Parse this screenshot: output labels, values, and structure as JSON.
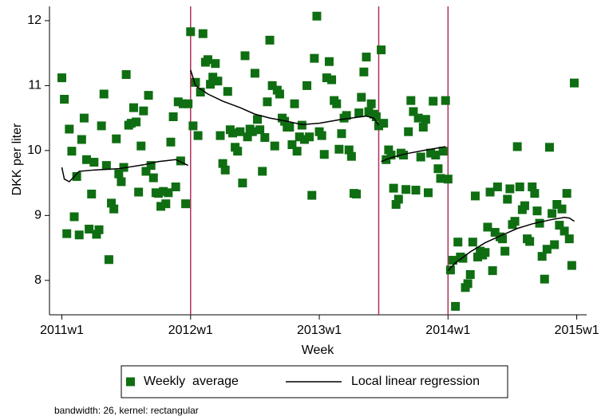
{
  "chart_data": {
    "type": "scatter",
    "y_label": "DKK per liter",
    "x_label": "Week",
    "footnote": "bandwidth: 26, kernel: rectangular",
    "xlim": [
      2647,
      2864
    ],
    "ylim": [
      7.47,
      12.22
    ],
    "xticks": [
      {
        "value": 2652,
        "label": "2011w1"
      },
      {
        "value": 2704,
        "label": "2012w1"
      },
      {
        "value": 2756,
        "label": "2013w1"
      },
      {
        "value": 2808,
        "label": "2014w1"
      },
      {
        "value": 2860,
        "label": "2015w1"
      }
    ],
    "yticks": [
      8,
      9,
      10,
      11,
      12
    ],
    "vlines": [
      2704,
      2780,
      2808
    ],
    "vline_color": "#b0305c",
    "legend": "bottom",
    "series": [
      {
        "name": "Weekly  average",
        "kind": "scatter",
        "color": "#0f6e12",
        "x": [
          2652,
          2653,
          2654,
          2655,
          2656,
          2657,
          2658,
          2659,
          2660,
          2661,
          2662,
          2663,
          2664,
          2665,
          2666,
          2667,
          2668,
          2669,
          2670,
          2671,
          2672,
          2673,
          2674,
          2675,
          2676,
          2677,
          2678,
          2679,
          2680,
          2681,
          2682,
          2683,
          2684,
          2685,
          2686,
          2687,
          2688,
          2689,
          2690,
          2691,
          2692,
          2693,
          2694,
          2695,
          2696,
          2697,
          2698,
          2699,
          2700,
          2701,
          2702,
          2703,
          2704,
          2705,
          2706,
          2707,
          2708,
          2709,
          2710,
          2711,
          2712,
          2713,
          2714,
          2715,
          2716,
          2717,
          2718,
          2719,
          2720,
          2721,
          2722,
          2723,
          2724,
          2725,
          2726,
          2727,
          2728,
          2729,
          2730,
          2731,
          2732,
          2733,
          2734,
          2735,
          2736,
          2737,
          2738,
          2739,
          2740,
          2741,
          2742,
          2743,
          2744,
          2745,
          2746,
          2747,
          2748,
          2749,
          2750,
          2751,
          2752,
          2753,
          2754,
          2755,
          2756,
          2757,
          2758,
          2759,
          2760,
          2761,
          2762,
          2763,
          2764,
          2765,
          2766,
          2767,
          2768,
          2769,
          2770,
          2771,
          2772,
          2773,
          2774,
          2775,
          2776,
          2777,
          2778,
          2779,
          2780,
          2781,
          2782,
          2783,
          2784,
          2785,
          2786,
          2787,
          2788,
          2789,
          2790,
          2791,
          2792,
          2793,
          2794,
          2795,
          2796,
          2797,
          2798,
          2799,
          2800,
          2801,
          2802,
          2803,
          2804,
          2805,
          2806,
          2807,
          2808,
          2809,
          2810,
          2811,
          2812,
          2813,
          2814,
          2815,
          2816,
          2817,
          2818,
          2819,
          2820,
          2821,
          2822,
          2823,
          2824,
          2825,
          2826,
          2827,
          2828,
          2829,
          2830,
          2831,
          2832,
          2833,
          2834,
          2835,
          2836,
          2837,
          2838,
          2839,
          2840,
          2841,
          2842,
          2843,
          2844,
          2845,
          2846,
          2847,
          2848,
          2849,
          2850,
          2851,
          2852,
          2853,
          2854,
          2855,
          2856,
          2857,
          2858,
          2859
        ],
        "values": [
          11.12,
          10.79,
          8.72,
          10.33,
          9.99,
          8.98,
          9.6,
          8.7,
          10.17,
          10.5,
          9.86,
          8.79,
          9.33,
          9.82,
          8.71,
          8.78,
          10.38,
          10.87,
          9.77,
          8.32,
          9.19,
          9.1,
          10.18,
          9.64,
          9.52,
          9.74,
          11.17,
          10.39,
          10.42,
          10.66,
          10.44,
          9.36,
          10.07,
          10.61,
          9.68,
          10.85,
          9.77,
          9.58,
          9.35,
          9.34,
          9.14,
          9.37,
          9.18,
          9.35,
          10.13,
          10.52,
          9.44,
          10.75,
          9.84,
          10.72,
          9.18,
          10.72,
          11.83,
          10.38,
          11.05,
          10.23,
          10.9,
          11.8,
          11.36,
          11.4,
          11.02,
          11.13,
          11.34,
          11.07,
          10.23,
          9.8,
          9.7,
          10.91,
          10.32,
          10.27,
          10.05,
          9.99,
          10.29,
          9.5,
          11.46,
          10.21,
          10.33,
          10.29,
          11.19,
          10.48,
          10.32,
          9.68,
          10.2,
          10.75,
          11.7,
          11.0,
          10.07,
          10.93,
          10.87,
          10.5,
          10.45,
          10.36,
          10.36,
          10.09,
          10.72,
          9.99,
          10.21,
          10.39,
          10.17,
          11.0,
          10.21,
          9.31,
          11.42,
          12.07,
          10.29,
          10.23,
          9.94,
          11.12,
          11.37,
          11.09,
          10.77,
          10.72,
          10.02,
          10.26,
          10.5,
          10.54,
          10.01,
          9.91,
          9.34,
          9.33,
          10.58,
          10.82,
          11.21,
          11.44,
          10.6,
          10.72,
          10.56,
          10.52,
          10.38,
          11.55,
          10.42,
          9.86,
          10.01,
          9.93,
          9.42,
          9.17,
          9.25,
          9.96,
          9.93,
          9.4,
          10.29,
          10.77,
          10.6,
          9.39,
          10.5,
          9.9,
          10.36,
          10.48,
          9.35,
          9.96,
          10.76,
          9.93,
          9.72,
          9.57,
          9.99,
          10.77,
          9.56,
          8.16,
          8.31,
          7.6,
          8.59,
          8.36,
          8.34,
          7.89,
          7.95,
          8.09,
          8.59,
          9.3,
          8.36,
          8.45,
          8.39,
          8.43,
          8.82,
          9.36,
          8.15,
          8.74,
          9.44,
          8.67,
          8.64,
          8.45,
          9.25,
          9.41,
          8.86,
          8.91,
          10.06,
          9.44,
          9.09,
          9.15,
          8.64,
          8.6,
          9.44,
          9.34,
          9.07,
          8.88,
          8.37,
          8.02,
          8.48,
          10.05,
          9.03,
          8.55,
          9.17,
          8.85,
          9.1,
          8.76,
          9.34,
          8.64,
          8.23,
          11.04
        ]
      },
      {
        "name": "Local linear regression",
        "kind": "line",
        "color": "#000000",
        "x": [
          2652,
          2653,
          2655,
          2659,
          2665,
          2675,
          2685,
          2691,
          2698,
          2703,
          null,
          2704,
          2706,
          2711,
          2717,
          2724,
          2730,
          2736,
          2743,
          2749,
          2756,
          2765,
          2775,
          2778,
          2780,
          null,
          2781,
          2785,
          2791,
          2798,
          2807,
          null,
          2808,
          2811,
          2817,
          2823,
          2830,
          2836,
          2842,
          2849,
          2855,
          2857,
          2859
        ],
        "values": [
          9.74,
          9.56,
          9.52,
          9.68,
          9.7,
          9.72,
          9.78,
          9.83,
          9.86,
          9.77,
          null,
          11.24,
          11.0,
          10.87,
          10.76,
          10.66,
          10.56,
          10.5,
          10.45,
          10.4,
          10.42,
          10.48,
          10.53,
          10.5,
          10.39,
          null,
          9.83,
          9.89,
          9.95,
          10.0,
          10.06,
          null,
          8.15,
          8.27,
          8.44,
          8.58,
          8.7,
          8.8,
          8.87,
          8.93,
          8.97,
          8.96,
          8.91
        ]
      }
    ]
  }
}
